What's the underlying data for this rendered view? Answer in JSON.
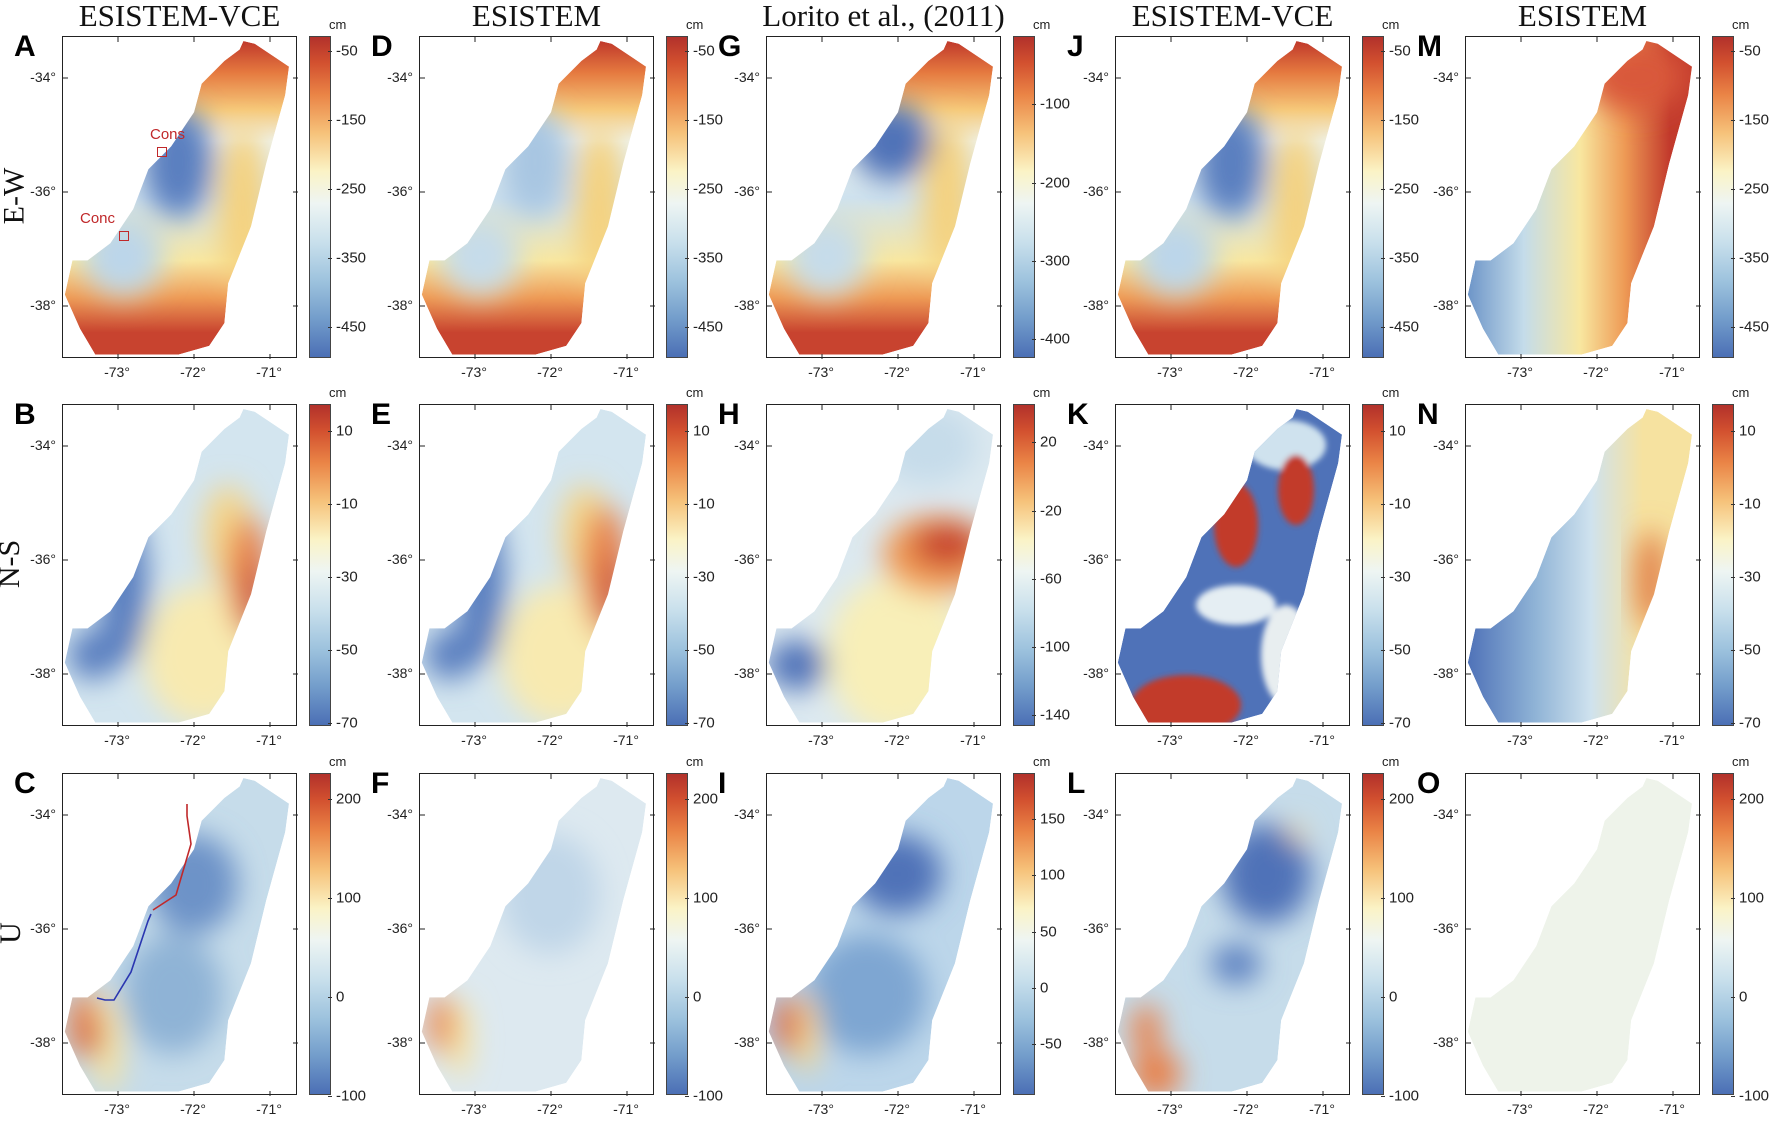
{
  "column_titles": [
    "ESISTEM-VCE",
    "ESISTEM",
    "Lorito et al., (2011)",
    "ESISTEM-VCE",
    "ESISTEM"
  ],
  "row_labels": [
    "E-W",
    "N-S",
    "U"
  ],
  "colors": {
    "red": "#b2312b",
    "yellow": "#fbf3c6",
    "blue": "#4b6fb5",
    "annotation": "#c0282a"
  },
  "chart_data": [
    {
      "type": "heatmap",
      "label": "A",
      "component": "E-W",
      "title": "ESISTEM-VCE",
      "unit": "cm",
      "cbar_ticks": [
        "-50",
        "-150",
        "-250",
        "-350",
        "-450"
      ],
      "cbar_range": [
        -497,
        -29
      ],
      "x_ticks": [
        "-73°",
        "-72°",
        "-71°"
      ],
      "y_ticks": [
        "-34°",
        "-36°",
        "-38°"
      ],
      "annotations": [
        "Cons",
        "Conc"
      ]
    },
    {
      "type": "heatmap",
      "label": "B",
      "component": "N-S",
      "title": "ESISTEM-VCE",
      "unit": "cm",
      "cbar_ticks": [
        "10",
        "-10",
        "-30",
        "-50",
        "-70"
      ],
      "cbar_range": [
        -71,
        17
      ],
      "x_ticks": [
        "-73°",
        "-72°",
        "-71°"
      ],
      "y_ticks": [
        "-34°",
        "-36°",
        "-38°"
      ]
    },
    {
      "type": "heatmap",
      "label": "C",
      "component": "U",
      "title": "ESISTEM-VCE",
      "unit": "cm",
      "cbar_ticks": [
        "200",
        "100",
        "0",
        "-100"
      ],
      "cbar_range": [
        -100,
        225
      ],
      "x_ticks": [
        "-73°",
        "-72°",
        "-71°"
      ],
      "y_ticks": [
        "-34°",
        "-36°",
        "-38°"
      ]
    },
    {
      "type": "heatmap",
      "label": "D",
      "component": "E-W",
      "title": "ESISTEM",
      "unit": "cm",
      "cbar_ticks": [
        "-50",
        "-150",
        "-250",
        "-350",
        "-450"
      ],
      "cbar_range": [
        -497,
        -29
      ],
      "x_ticks": [
        "-73°",
        "-72°",
        "-71°"
      ],
      "y_ticks": [
        "-34°",
        "-36°",
        "-38°"
      ]
    },
    {
      "type": "heatmap",
      "label": "E",
      "component": "N-S",
      "title": "ESISTEM",
      "unit": "cm",
      "cbar_ticks": [
        "10",
        "-10",
        "-30",
        "-50",
        "-70"
      ],
      "cbar_range": [
        -71,
        17
      ],
      "x_ticks": [
        "-73°",
        "-72°",
        "-71°"
      ],
      "y_ticks": [
        "-34°",
        "-36°",
        "-38°"
      ]
    },
    {
      "type": "heatmap",
      "label": "F",
      "component": "U",
      "title": "ESISTEM",
      "unit": "cm",
      "cbar_ticks": [
        "200",
        "100",
        "0",
        "-100"
      ],
      "cbar_range": [
        -100,
        225
      ],
      "x_ticks": [
        "-73°",
        "-72°",
        "-71°"
      ],
      "y_ticks": [
        "-34°",
        "-36°",
        "-38°"
      ]
    },
    {
      "type": "heatmap",
      "label": "G",
      "component": "E-W",
      "title": "Lorito et al., (2011)",
      "unit": "cm",
      "cbar_ticks": [
        "-100",
        "-200",
        "-300",
        "-400"
      ],
      "cbar_range": [
        -425,
        -14
      ],
      "x_ticks": [
        "-73°",
        "-72°",
        "-71°"
      ],
      "y_ticks": [
        "-34°",
        "-36°",
        "-38°"
      ]
    },
    {
      "type": "heatmap",
      "label": "H",
      "component": "N-S",
      "title": "Lorito et al., (2011)",
      "unit": "cm",
      "cbar_ticks": [
        "20",
        "-20",
        "-60",
        "-100",
        "-140"
      ],
      "cbar_range": [
        -147,
        42
      ],
      "x_ticks": [
        "-73°",
        "-72°",
        "-71°"
      ],
      "y_ticks": [
        "-34°",
        "-36°",
        "-38°"
      ]
    },
    {
      "type": "heatmap",
      "label": "I",
      "component": "U",
      "title": "Lorito et al., (2011)",
      "unit": "cm",
      "cbar_ticks": [
        "150",
        "100",
        "50",
        "0",
        "-50"
      ],
      "cbar_range": [
        -96,
        190
      ],
      "x_ticks": [
        "-73°",
        "-72°",
        "-71°"
      ],
      "y_ticks": [
        "-34°",
        "-36°",
        "-38°"
      ]
    },
    {
      "type": "heatmap",
      "label": "J",
      "component": "E-W",
      "title": "ESISTEM-VCE",
      "unit": "cm",
      "cbar_ticks": [
        "-50",
        "-150",
        "-250",
        "-350",
        "-450"
      ],
      "cbar_range": [
        -497,
        -29
      ],
      "x_ticks": [
        "-73°",
        "-72°",
        "-71°"
      ],
      "y_ticks": [
        "-34°",
        "-36°",
        "-38°"
      ]
    },
    {
      "type": "heatmap",
      "label": "K",
      "component": "N-S",
      "title": "ESISTEM-VCE",
      "unit": "cm",
      "cbar_ticks": [
        "10",
        "-10",
        "-30",
        "-50",
        "-70"
      ],
      "cbar_range": [
        -71,
        17
      ],
      "x_ticks": [
        "-73°",
        "-72°",
        "-71°"
      ],
      "y_ticks": [
        "-34°",
        "-36°",
        "-38°"
      ]
    },
    {
      "type": "heatmap",
      "label": "L",
      "component": "U",
      "title": "ESISTEM-VCE",
      "unit": "cm",
      "cbar_ticks": [
        "200",
        "100",
        "0",
        "-100"
      ],
      "cbar_range": [
        -100,
        225
      ],
      "x_ticks": [
        "-73°",
        "-72°",
        "-71°"
      ],
      "y_ticks": [
        "-34°",
        "-36°",
        "-38°"
      ]
    },
    {
      "type": "heatmap",
      "label": "M",
      "component": "E-W",
      "title": "ESISTEM",
      "unit": "cm",
      "cbar_ticks": [
        "-50",
        "-150",
        "-250",
        "-350",
        "-450"
      ],
      "cbar_range": [
        -497,
        -29
      ],
      "x_ticks": [
        "-73°",
        "-72°",
        "-71°"
      ],
      "y_ticks": [
        "-34°",
        "-36°",
        "-38°"
      ]
    },
    {
      "type": "heatmap",
      "label": "N",
      "component": "N-S",
      "title": "ESISTEM",
      "unit": "cm",
      "cbar_ticks": [
        "10",
        "-10",
        "-30",
        "-50",
        "-70"
      ],
      "cbar_range": [
        -71,
        17
      ],
      "x_ticks": [
        "-73°",
        "-72°",
        "-71°"
      ],
      "y_ticks": [
        "-34°",
        "-36°",
        "-38°"
      ]
    },
    {
      "type": "heatmap",
      "label": "O",
      "component": "U",
      "title": "ESISTEM",
      "unit": "cm",
      "cbar_ticks": [
        "200",
        "100",
        "0",
        "-100"
      ],
      "cbar_range": [
        -100,
        225
      ],
      "x_ticks": [
        "-73°",
        "-72°",
        "-71°"
      ],
      "y_ticks": [
        "-34°",
        "-36°",
        "-38°"
      ]
    }
  ]
}
